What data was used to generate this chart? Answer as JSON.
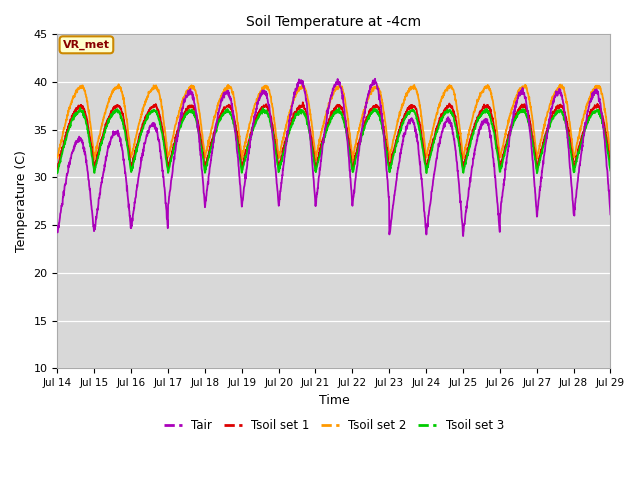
{
  "title": "Soil Temperature at -4cm",
  "xlabel": "Time",
  "ylabel": "Temperature (C)",
  "ylim": [
    10,
    45
  ],
  "annotation": "VR_met",
  "bg_color": "#d8d8d8",
  "fig_color": "#ffffff",
  "line_colors": {
    "Tair": "#aa00bb",
    "Tsoil set 1": "#dd0000",
    "Tsoil set 2": "#ff9900",
    "Tsoil set 3": "#00cc00"
  },
  "xtick_labels": [
    "Jul 14",
    "Jul 15",
    "Jul 16",
    "Jul 17",
    "Jul 18",
    "Jul 19",
    "Jul 20",
    "Jul 21",
    "Jul 22",
    "Jul 23",
    "Jul 24",
    "Jul 25",
    "Jul 26",
    "Jul 27",
    "Jul 28",
    "Jul 29"
  ],
  "ytick_values": [
    10,
    15,
    20,
    25,
    30,
    35,
    40,
    45
  ],
  "start_day": 14,
  "end_day": 29,
  "points_per_day": 144
}
